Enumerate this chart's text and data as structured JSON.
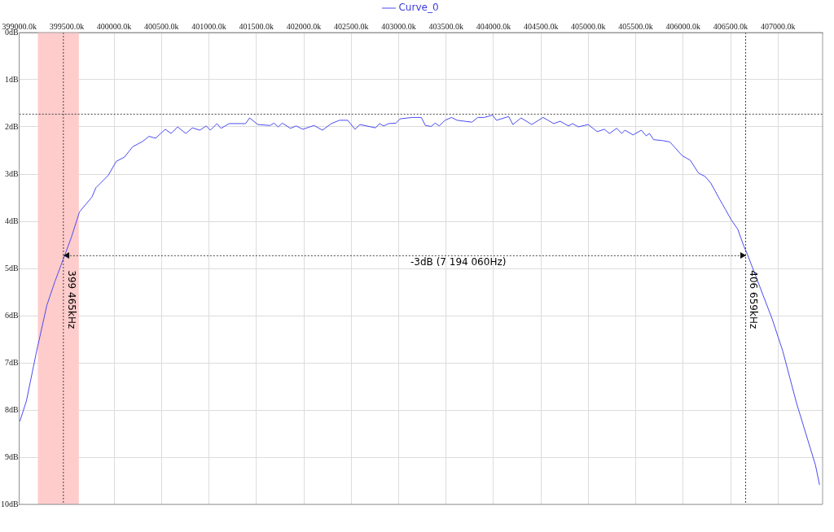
{
  "chart_data": {
    "type": "line",
    "series": [
      {
        "name": "Curve_0",
        "color": "#4b4bf0",
        "x": [
          399006,
          399075,
          399178,
          399291,
          399377,
          399472,
          399549,
          399635,
          399765,
          399808,
          399937,
          400023,
          400109,
          400196,
          400299,
          400368,
          400437,
          400540,
          400601,
          400670,
          400756,
          400825,
          400903,
          400972,
          401015,
          401084,
          401127,
          401213,
          401386,
          401429,
          401515,
          401644,
          401687,
          401730,
          401773,
          401859,
          401920,
          401989,
          402109,
          402196,
          402290,
          402376,
          402463,
          402540,
          402592,
          402756,
          402799,
          402842,
          402894,
          402972,
          403014,
          403144,
          403239,
          403282,
          403342,
          403385,
          403428,
          403489,
          403558,
          403618,
          403773,
          403834,
          403903,
          403989,
          404032,
          404161,
          404204,
          404291,
          404403,
          404523,
          404635,
          404704,
          404791,
          404834,
          404894,
          404998,
          405093,
          405170,
          405222,
          405300,
          405352,
          405386,
          405472,
          405559,
          405610,
          405645,
          405688,
          405783,
          405860,
          405990,
          406076,
          406162,
          406231,
          406291,
          406386,
          406446,
          406507,
          406576,
          406636,
          406679,
          406938,
          407050,
          407196,
          407395,
          407438
        ],
        "values": [
          -8.24,
          -7.81,
          -6.8,
          -5.78,
          -5.27,
          -4.76,
          -4.34,
          -3.8,
          -3.49,
          -3.29,
          -3.03,
          -2.73,
          -2.64,
          -2.42,
          -2.31,
          -2.2,
          -2.24,
          -2.05,
          -2.14,
          -2.0,
          -2.14,
          -2.02,
          -2.07,
          -1.98,
          -2.07,
          -1.93,
          -2.03,
          -1.93,
          -1.93,
          -1.81,
          -1.95,
          -1.97,
          -1.92,
          -2.0,
          -1.92,
          -2.03,
          -1.98,
          -2.05,
          -1.97,
          -2.07,
          -1.93,
          -1.86,
          -1.86,
          -2.05,
          -1.95,
          -2.02,
          -1.93,
          -1.98,
          -1.93,
          -1.92,
          -1.83,
          -1.8,
          -1.8,
          -1.97,
          -1.99,
          -1.92,
          -1.98,
          -1.86,
          -1.8,
          -1.86,
          -1.9,
          -1.8,
          -1.8,
          -1.75,
          -1.86,
          -1.78,
          -1.95,
          -1.81,
          -1.95,
          -1.8,
          -1.93,
          -1.88,
          -1.98,
          -1.93,
          -2.0,
          -1.95,
          -2.1,
          -2.05,
          -2.14,
          -2.03,
          -2.14,
          -2.07,
          -2.17,
          -2.07,
          -2.19,
          -2.14,
          -2.27,
          -2.29,
          -2.32,
          -2.61,
          -2.71,
          -2.98,
          -3.05,
          -3.19,
          -3.54,
          -3.75,
          -3.97,
          -4.17,
          -4.51,
          -4.71,
          -6.07,
          -6.75,
          -7.86,
          -9.17,
          -9.59
        ]
      }
    ],
    "xlim": [
      399000,
      407470
    ],
    "xticks": [
      {
        "value": 399000,
        "label": "399000.0k"
      },
      {
        "value": 399500,
        "label": "399500.0k"
      },
      {
        "value": 400000,
        "label": "400000.0k"
      },
      {
        "value": 400500,
        "label": "400500.0k"
      },
      {
        "value": 401000,
        "label": "401000.0k"
      },
      {
        "value": 401500,
        "label": "401500.0k"
      },
      {
        "value": 402000,
        "label": "402000.0k"
      },
      {
        "value": 402500,
        "label": "402500.0k"
      },
      {
        "value": 403000,
        "label": "403000.0k"
      },
      {
        "value": 403500,
        "label": "403500.0k"
      },
      {
        "value": 404000,
        "label": "404000.0k"
      },
      {
        "value": 404500,
        "label": "404500.0k"
      },
      {
        "value": 405000,
        "label": "405000.0k"
      },
      {
        "value": 405500,
        "label": "405500.0k"
      },
      {
        "value": 406000,
        "label": "406000.0k"
      },
      {
        "value": 406500,
        "label": "406500.0k"
      },
      {
        "value": 407000,
        "label": "407000.0k"
      }
    ],
    "ylim": [
      -10,
      0
    ],
    "yticks": [
      {
        "value": 0,
        "label": "0dB"
      },
      {
        "value": -1,
        "label": "1dB"
      },
      {
        "value": -2,
        "label": "2dB"
      },
      {
        "value": -3,
        "label": "3dB"
      },
      {
        "value": -4,
        "label": "4dB"
      },
      {
        "value": -5,
        "label": "5dB"
      },
      {
        "value": -6,
        "label": "6dB"
      },
      {
        "value": -7,
        "label": "7dB"
      },
      {
        "value": -8,
        "label": "8dB"
      },
      {
        "value": -9,
        "label": "9dB"
      },
      {
        "value": -10,
        "label": "10dB"
      }
    ],
    "ref_lines": [
      {
        "axis": "x",
        "value": 399465,
        "label": "399 465kHz",
        "color": "#404040",
        "line_style": "dotted"
      },
      {
        "axis": "x",
        "value": 406659,
        "label": "406 659kHz",
        "color": "#404040",
        "line_style": "dotted"
      },
      {
        "axis": "y",
        "value": -1.73,
        "color": "#404040",
        "line_style": "dotted"
      },
      {
        "axis": "y",
        "value": -4.73,
        "label": "-3dB (7 194 060Hz)",
        "color": "#404040",
        "line_style": "dotted"
      }
    ],
    "bands": [
      {
        "axis": "x",
        "from": 399196,
        "to": 399628,
        "color": "#ffcccc"
      }
    ],
    "grid": true,
    "legend": "top",
    "marker": "none",
    "line_style": "solid"
  }
}
